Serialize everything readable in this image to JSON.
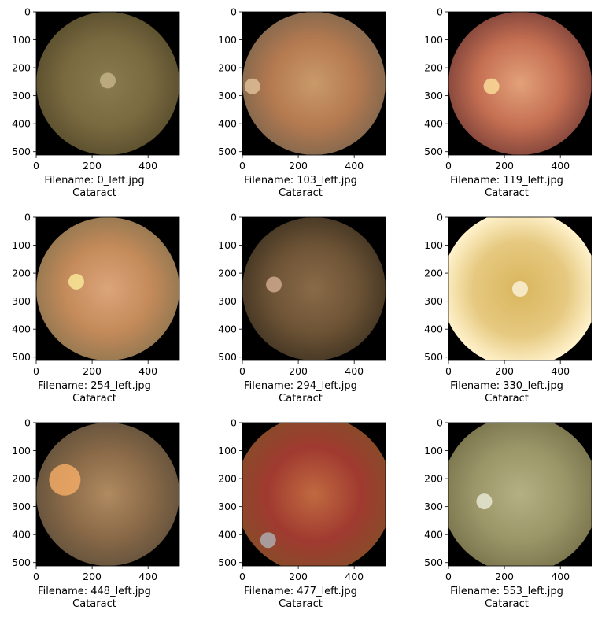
{
  "figure": {
    "x_ticks": [
      "0",
      "200",
      "400"
    ],
    "y_ticks": [
      "0",
      "100",
      "200",
      "300",
      "400",
      "500"
    ],
    "panels": [
      {
        "filename": "Filename: 0_left.jpg",
        "label": "Cataract",
        "colors": [
          "#8a7a50",
          "#7a6a40",
          "#5e5230",
          "#cbb98d"
        ]
      },
      {
        "filename": "Filename: 103_left.jpg",
        "label": "Cataract",
        "colors": [
          "#c99a6a",
          "#b57a50",
          "#8a6a4e",
          "#e7c8a0"
        ]
      },
      {
        "filename": "Filename: 119_left.jpg",
        "label": "Cataract",
        "colors": [
          "#e2a27a",
          "#c56f52",
          "#8a4a3e",
          "#ffe6a0"
        ]
      },
      {
        "filename": "Filename: 254_left.jpg",
        "label": "Cataract",
        "colors": [
          "#dba57a",
          "#c48a5a",
          "#9a7a52",
          "#fff1a0"
        ]
      },
      {
        "filename": "Filename: 294_left.jpg",
        "label": "Cataract",
        "colors": [
          "#8a6a48",
          "#6e5436",
          "#4a3a26",
          "#d9b49a"
        ]
      },
      {
        "filename": "Filename: 330_left.jpg",
        "label": "Cataract",
        "colors": [
          "#d9b55c",
          "#e6c980",
          "#fff2cc",
          "#fff8e6"
        ]
      },
      {
        "filename": "Filename: 448_left.jpg",
        "label": "Cataract",
        "colors": [
          "#b08a60",
          "#8a6a48",
          "#6a563e",
          "#ffb36a"
        ]
      },
      {
        "filename": "Filename: 477_left.jpg",
        "label": "Cataract",
        "colors": [
          "#c06a40",
          "#a03a30",
          "#8a4a2a",
          "#b0b8c0"
        ]
      },
      {
        "filename": "Filename: 553_left.jpg",
        "label": "Cataract",
        "colors": [
          "#b4b083",
          "#9a9668",
          "#7e7850",
          "#f0f0e0"
        ]
      }
    ]
  }
}
